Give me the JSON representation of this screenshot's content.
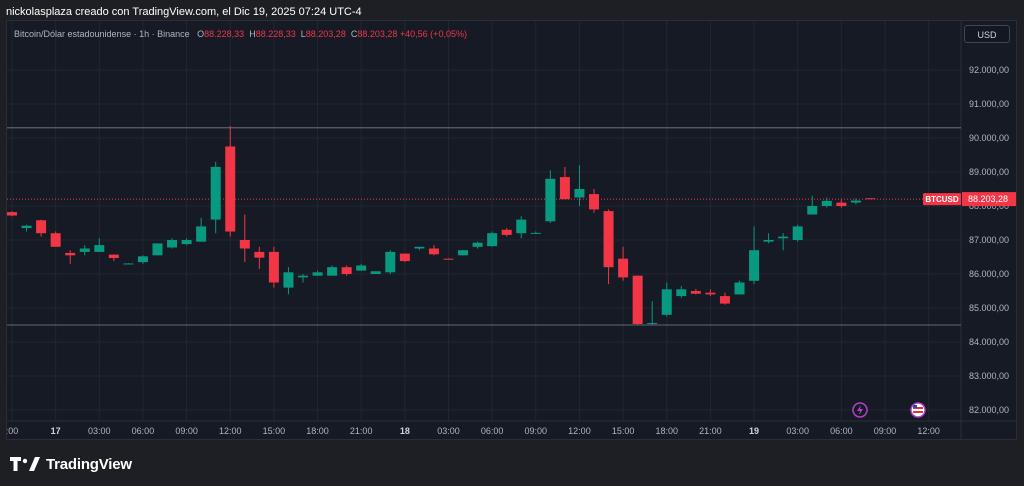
{
  "caption": "nickolasplaza creado con TradingView.com, el Dic 19, 2025 07:24 UTC-4",
  "legend": {
    "symbol": "Bitcoin/Dólar estadounidense · 1h · Binance",
    "o_label": "O",
    "o_value": "88.228,33",
    "h_label": "H",
    "h_value": "88.228,33",
    "l_label": "L",
    "l_value": "88.203,28",
    "c_label": "C",
    "c_value": "88.203,28",
    "change": "+40,56 (+0,05%)"
  },
  "currency_button": "USD",
  "brand": "TradingView",
  "colors": {
    "up": "#089981",
    "down": "#f23645",
    "background": "#161a25",
    "grid": "#232631",
    "price_line": "#f23645",
    "axis_text": "#b2b5be"
  },
  "chart_data": {
    "type": "candlestick",
    "ylim": [
      81700,
      93000
    ],
    "yticks": [
      {
        "value": 92000,
        "label": "92.000,00"
      },
      {
        "value": 91000,
        "label": "91.000,00"
      },
      {
        "value": 90000,
        "label": "90.000,00"
      },
      {
        "value": 89000,
        "label": "89.000,00"
      },
      {
        "value": 88000,
        "label": "88.000,00"
      },
      {
        "value": 87000,
        "label": "87.000,00"
      },
      {
        "value": 86000,
        "label": "86.000,00"
      },
      {
        "value": 85000,
        "label": "85.000,00"
      },
      {
        "value": 84000,
        "label": "84.000,00"
      },
      {
        "value": 83000,
        "label": "83.000,00"
      },
      {
        "value": 82000,
        "label": "82.000,00"
      }
    ],
    "xticks": [
      {
        "index": 0,
        "label": ":00",
        "bold": false
      },
      {
        "index": 3,
        "label": "17",
        "bold": true
      },
      {
        "index": 6,
        "label": "03:00",
        "bold": false
      },
      {
        "index": 9,
        "label": "06:00",
        "bold": false
      },
      {
        "index": 12,
        "label": "09:00",
        "bold": false
      },
      {
        "index": 15,
        "label": "12:00",
        "bold": false
      },
      {
        "index": 18,
        "label": "15:00",
        "bold": false
      },
      {
        "index": 21,
        "label": "18:00",
        "bold": false
      },
      {
        "index": 24,
        "label": "21:00",
        "bold": false
      },
      {
        "index": 27,
        "label": "18",
        "bold": true
      },
      {
        "index": 30,
        "label": "03:00",
        "bold": false
      },
      {
        "index": 33,
        "label": "06:00",
        "bold": false
      },
      {
        "index": 36,
        "label": "09:00",
        "bold": false
      },
      {
        "index": 39,
        "label": "12:00",
        "bold": false
      },
      {
        "index": 42,
        "label": "15:00",
        "bold": false
      },
      {
        "index": 45,
        "label": "18:00",
        "bold": false
      },
      {
        "index": 48,
        "label": "21:00",
        "bold": false
      },
      {
        "index": 51,
        "label": "19",
        "bold": true
      },
      {
        "index": 54,
        "label": "03:00",
        "bold": false
      },
      {
        "index": 57,
        "label": "06:00",
        "bold": false
      },
      {
        "index": 60,
        "label": "09:00",
        "bold": false
      },
      {
        "index": 63,
        "label": "12:00",
        "bold": false
      }
    ],
    "horizontal_lines": [
      90300,
      84500
    ],
    "last_price": {
      "value": 88203.28,
      "label": "88.203,28",
      "symbol": "BTCUSD"
    },
    "candles": [
      {
        "o": 87820,
        "h": 87850,
        "l": 87700,
        "c": 87720
      },
      {
        "o": 87350,
        "h": 87450,
        "l": 87250,
        "c": 87420
      },
      {
        "o": 87580,
        "h": 87600,
        "l": 87100,
        "c": 87200
      },
      {
        "o": 87200,
        "h": 87250,
        "l": 86800,
        "c": 86800
      },
      {
        "o": 86620,
        "h": 86700,
        "l": 86300,
        "c": 86550
      },
      {
        "o": 86650,
        "h": 86850,
        "l": 86550,
        "c": 86750
      },
      {
        "o": 86650,
        "h": 87050,
        "l": 86650,
        "c": 86850
      },
      {
        "o": 86570,
        "h": 86580,
        "l": 86380,
        "c": 86470
      },
      {
        "o": 86300,
        "h": 86320,
        "l": 86280,
        "c": 86310
      },
      {
        "o": 86350,
        "h": 86550,
        "l": 86300,
        "c": 86520
      },
      {
        "o": 86550,
        "h": 86900,
        "l": 86550,
        "c": 86900
      },
      {
        "o": 86780,
        "h": 87050,
        "l": 86750,
        "c": 87000
      },
      {
        "o": 86880,
        "h": 87050,
        "l": 86850,
        "c": 87000
      },
      {
        "o": 86950,
        "h": 87650,
        "l": 86950,
        "c": 87400
      },
      {
        "o": 87600,
        "h": 89300,
        "l": 87200,
        "c": 89150
      },
      {
        "o": 89750,
        "h": 90350,
        "l": 87100,
        "c": 87250
      },
      {
        "o": 87000,
        "h": 87750,
        "l": 86350,
        "c": 86750
      },
      {
        "o": 86650,
        "h": 86800,
        "l": 86150,
        "c": 86480
      },
      {
        "o": 86650,
        "h": 86800,
        "l": 85600,
        "c": 85750
      },
      {
        "o": 85600,
        "h": 86200,
        "l": 85400,
        "c": 86050
      },
      {
        "o": 85900,
        "h": 86000,
        "l": 85750,
        "c": 85950
      },
      {
        "o": 85950,
        "h": 86100,
        "l": 85950,
        "c": 86050
      },
      {
        "o": 85950,
        "h": 86250,
        "l": 85950,
        "c": 86200
      },
      {
        "o": 86200,
        "h": 86250,
        "l": 85950,
        "c": 86000
      },
      {
        "o": 86100,
        "h": 86300,
        "l": 86100,
        "c": 86250
      },
      {
        "o": 86000,
        "h": 86080,
        "l": 86000,
        "c": 86080
      },
      {
        "o": 86050,
        "h": 86700,
        "l": 86000,
        "c": 86650
      },
      {
        "o": 86600,
        "h": 86600,
        "l": 86350,
        "c": 86380
      },
      {
        "o": 86750,
        "h": 86800,
        "l": 86700,
        "c": 86800
      },
      {
        "o": 86750,
        "h": 86850,
        "l": 86550,
        "c": 86580
      },
      {
        "o": 86450,
        "h": 86460,
        "l": 86430,
        "c": 86440
      },
      {
        "o": 86550,
        "h": 86700,
        "l": 86550,
        "c": 86700
      },
      {
        "o": 86800,
        "h": 86950,
        "l": 86750,
        "c": 86920
      },
      {
        "o": 86820,
        "h": 87250,
        "l": 86800,
        "c": 87200
      },
      {
        "o": 87300,
        "h": 87350,
        "l": 87100,
        "c": 87150
      },
      {
        "o": 87200,
        "h": 87700,
        "l": 87050,
        "c": 87600
      },
      {
        "o": 87200,
        "h": 87250,
        "l": 87180,
        "c": 87210
      },
      {
        "o": 87550,
        "h": 89050,
        "l": 87500,
        "c": 88800
      },
      {
        "o": 88850,
        "h": 89150,
        "l": 88200,
        "c": 88200
      },
      {
        "o": 88250,
        "h": 89200,
        "l": 88000,
        "c": 88500
      },
      {
        "o": 88350,
        "h": 88500,
        "l": 87800,
        "c": 87900
      },
      {
        "o": 87850,
        "h": 87900,
        "l": 85700,
        "c": 86200
      },
      {
        "o": 86450,
        "h": 86800,
        "l": 85800,
        "c": 85900
      },
      {
        "o": 85950,
        "h": 85960,
        "l": 84500,
        "c": 84530
      },
      {
        "o": 84550,
        "h": 85200,
        "l": 84500,
        "c": 84560
      },
      {
        "o": 84800,
        "h": 85750,
        "l": 84750,
        "c": 85550
      },
      {
        "o": 85350,
        "h": 85650,
        "l": 85300,
        "c": 85550
      },
      {
        "o": 85500,
        "h": 85560,
        "l": 85400,
        "c": 85420
      },
      {
        "o": 85450,
        "h": 85550,
        "l": 85350,
        "c": 85400
      },
      {
        "o": 85350,
        "h": 85450,
        "l": 85100,
        "c": 85130
      },
      {
        "o": 85400,
        "h": 85800,
        "l": 85400,
        "c": 85750
      },
      {
        "o": 85800,
        "h": 87400,
        "l": 85700,
        "c": 86700
      },
      {
        "o": 86950,
        "h": 87200,
        "l": 86900,
        "c": 87000
      },
      {
        "o": 87050,
        "h": 87200,
        "l": 86700,
        "c": 87100
      },
      {
        "o": 87000,
        "h": 87450,
        "l": 86950,
        "c": 87400
      },
      {
        "o": 87750,
        "h": 88300,
        "l": 87750,
        "c": 88000
      },
      {
        "o": 88000,
        "h": 88250,
        "l": 87950,
        "c": 88150
      },
      {
        "o": 88100,
        "h": 88200,
        "l": 87950,
        "c": 88000
      },
      {
        "o": 88100,
        "h": 88220,
        "l": 88050,
        "c": 88160
      },
      {
        "o": 88228.33,
        "h": 88228.33,
        "l": 88203.28,
        "c": 88203.28
      }
    ]
  }
}
